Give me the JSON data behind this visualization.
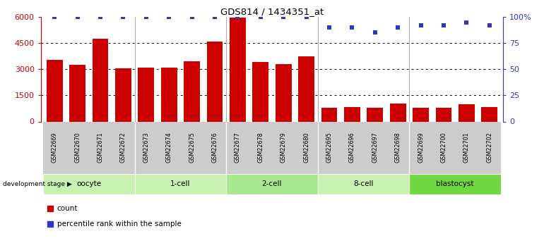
{
  "title": "GDS814 / 1434351_at",
  "samples": [
    "GSM22669",
    "GSM22670",
    "GSM22671",
    "GSM22672",
    "GSM22673",
    "GSM22674",
    "GSM22675",
    "GSM22676",
    "GSM22677",
    "GSM22678",
    "GSM22679",
    "GSM22680",
    "GSM22695",
    "GSM22696",
    "GSM22697",
    "GSM22698",
    "GSM22699",
    "GSM22700",
    "GSM22701",
    "GSM22702"
  ],
  "counts": [
    3550,
    3250,
    4750,
    3050,
    3100,
    3100,
    3450,
    4600,
    5950,
    3400,
    3300,
    3750,
    800,
    820,
    790,
    1050,
    800,
    780,
    1000,
    830
  ],
  "percentiles": [
    100,
    100,
    100,
    100,
    100,
    100,
    100,
    100,
    100,
    100,
    100,
    100,
    90,
    90,
    85,
    90,
    92,
    92,
    95,
    92
  ],
  "groups": [
    {
      "label": "oocyte",
      "start": 0,
      "end": 4,
      "color": "#c8f0b0"
    },
    {
      "label": "1-cell",
      "start": 4,
      "end": 8,
      "color": "#c8f0b0"
    },
    {
      "label": "2-cell",
      "start": 8,
      "end": 12,
      "color": "#a8e890"
    },
    {
      "label": "8-cell",
      "start": 12,
      "end": 16,
      "color": "#c8f0b0"
    },
    {
      "label": "blastocyst",
      "start": 16,
      "end": 20,
      "color": "#70d840"
    }
  ],
  "bar_color": "#cc0000",
  "dot_color": "#3333cc",
  "left_axis_color": "#cc0000",
  "right_axis_color": "#3333cc",
  "ylim_left": [
    0,
    6000
  ],
  "ylim_right": [
    0,
    100
  ],
  "yticks_left": [
    0,
    1500,
    3000,
    4500,
    6000
  ],
  "ytick_labels_left": [
    "0",
    "1500",
    "3000",
    "4500",
    "6000"
  ],
  "yticks_right": [
    0,
    25,
    50,
    75,
    100
  ],
  "ytick_labels_right": [
    "0",
    "25",
    "50",
    "75",
    "100%"
  ],
  "grid_values": [
    1500,
    3000,
    4500
  ],
  "legend_count_label": "count",
  "legend_pct_label": "percentile rank within the sample",
  "dev_stage_label": "development stage"
}
